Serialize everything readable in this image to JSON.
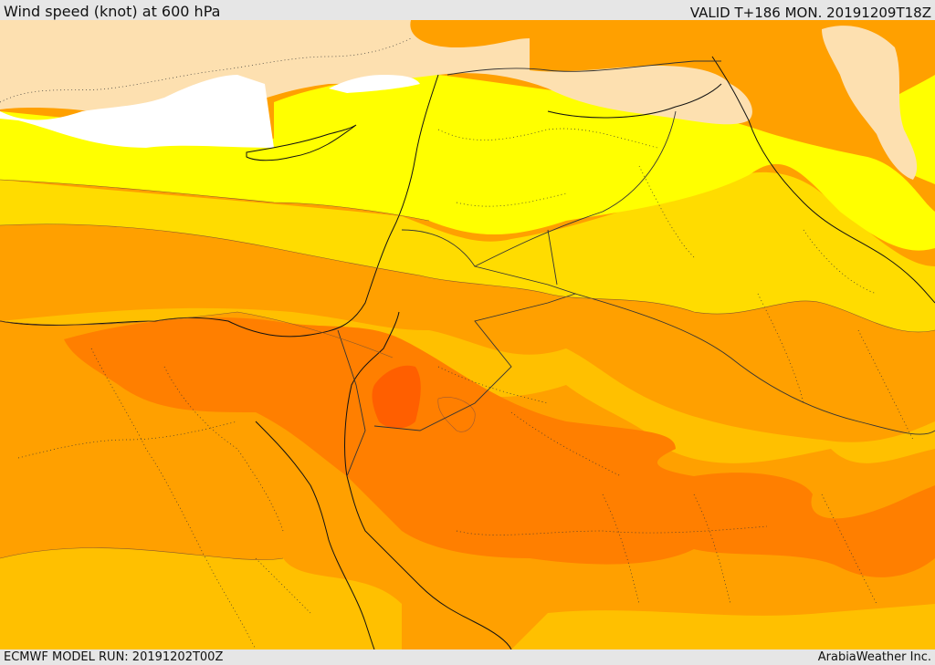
{
  "header": {
    "title": "Wind speed (knot) at 600 hPa",
    "valid": "VALID T+186 MON. 20191209T18Z"
  },
  "footer": {
    "model_run": "ECMWF MODEL RUN: 20191202T00Z",
    "credit": "ArabiaWeather Inc."
  },
  "colors": {
    "sea": "#ffffff",
    "band_lowest": "#fde0b0",
    "band_low": "#ffff00",
    "band_mid": "#ffdc00",
    "band_mid_high": "#ffc000",
    "band_high": "#ffa000",
    "band_higher": "#ff7f00",
    "band_max": "#ff5f00"
  }
}
